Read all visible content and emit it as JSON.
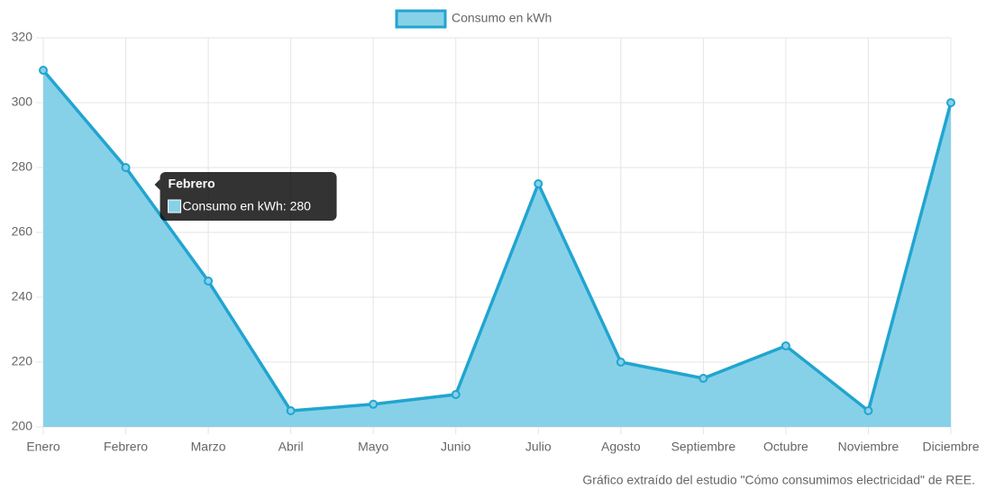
{
  "chart_data": {
    "type": "area",
    "categories": [
      "Enero",
      "Febrero",
      "Marzo",
      "Abril",
      "Mayo",
      "Junio",
      "Julio",
      "Agosto",
      "Septiembre",
      "Octubre",
      "Noviembre",
      "Diciembre"
    ],
    "series": [
      {
        "name": "Consumo en kWh",
        "color": "#21a5d0",
        "fill": "#87d1e8",
        "values": [
          310,
          280,
          245,
          205,
          207,
          210,
          275,
          220,
          215,
          225,
          205,
          300
        ]
      }
    ],
    "ylim": [
      200,
      320
    ],
    "yticks": [
      200,
      220,
      240,
      260,
      280,
      300,
      320
    ],
    "grid": true,
    "legend": "top",
    "tooltip": {
      "index": 1,
      "title": "Febrero",
      "text": "Consumo en kWh: 280"
    },
    "caption": "Gráfico extraído del estudio \"Cómo consumimos electricidad\" de REE."
  }
}
